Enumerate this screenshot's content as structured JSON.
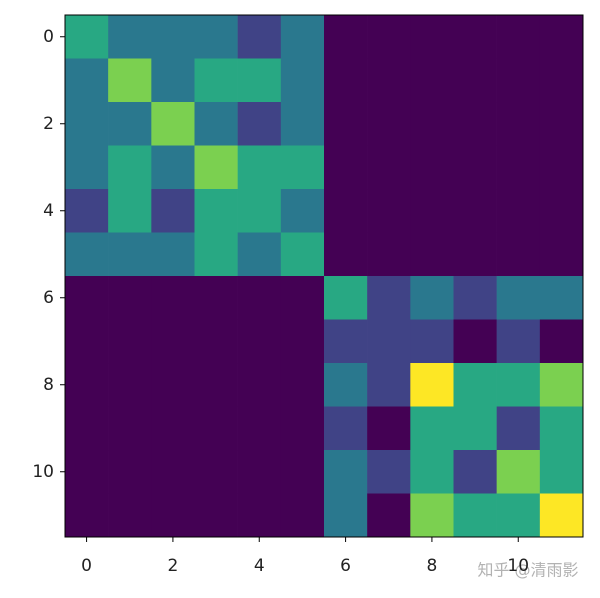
{
  "chart_data": {
    "type": "heatmap",
    "colormap": "viridis",
    "values": [
      [
        3,
        2,
        2,
        2,
        1,
        2,
        0,
        0,
        0,
        0,
        0,
        0
      ],
      [
        2,
        4,
        2,
        3,
        3,
        2,
        0,
        0,
        0,
        0,
        0,
        0
      ],
      [
        2,
        2,
        4,
        2,
        1,
        2,
        0,
        0,
        0,
        0,
        0,
        0
      ],
      [
        2,
        3,
        2,
        4,
        3,
        3,
        0,
        0,
        0,
        0,
        0,
        0
      ],
      [
        1,
        3,
        1,
        3,
        3,
        2,
        0,
        0,
        0,
        0,
        0,
        0
      ],
      [
        2,
        2,
        2,
        3,
        2,
        3,
        0,
        0,
        0,
        0,
        0,
        0
      ],
      [
        0,
        0,
        0,
        0,
        0,
        0,
        3,
        1,
        2,
        1,
        2,
        2
      ],
      [
        0,
        0,
        0,
        0,
        0,
        0,
        1,
        1,
        1,
        0,
        1,
        0
      ],
      [
        0,
        0,
        0,
        0,
        0,
        0,
        2,
        1,
        5,
        3,
        3,
        4
      ],
      [
        0,
        0,
        0,
        0,
        0,
        0,
        1,
        0,
        3,
        3,
        1,
        3
      ],
      [
        0,
        0,
        0,
        0,
        0,
        0,
        2,
        1,
        3,
        1,
        4,
        3
      ],
      [
        0,
        0,
        0,
        0,
        0,
        0,
        2,
        0,
        4,
        3,
        3,
        5
      ]
    ],
    "xlim": [
      -0.5,
      11.5
    ],
    "ylim": [
      11.5,
      -0.5
    ],
    "xticks": [
      0,
      2,
      4,
      6,
      8,
      10
    ],
    "yticks": [
      0,
      2,
      4,
      6,
      8,
      10
    ],
    "watermark": "知乎 @清雨影"
  }
}
